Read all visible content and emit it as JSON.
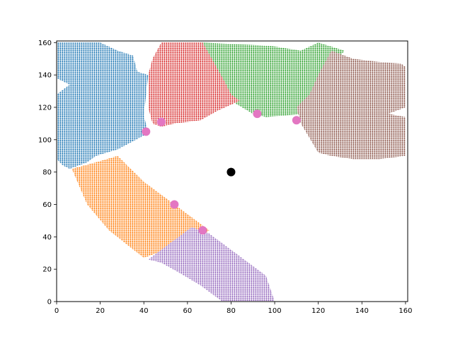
{
  "chart_data": {
    "type": "scatter",
    "title": "",
    "xlabel": "",
    "ylabel": "",
    "xlim": [
      0,
      161
    ],
    "ylim": [
      0,
      161
    ],
    "grid": false,
    "legend": "none",
    "x_ticks": [
      0,
      20,
      40,
      60,
      80,
      100,
      120,
      140,
      160
    ],
    "y_ticks": [
      0,
      20,
      40,
      60,
      80,
      100,
      120,
      140,
      160
    ],
    "series": [
      {
        "color": "#1f77b4",
        "marker": "dense points",
        "region": [
          [
            0,
            160
          ],
          [
            20,
            160
          ],
          [
            28,
            155
          ],
          [
            35,
            152
          ],
          [
            37,
            142
          ],
          [
            42,
            140
          ],
          [
            40,
            115
          ],
          [
            42,
            104
          ],
          [
            28,
            94
          ],
          [
            18,
            90
          ],
          [
            14,
            86
          ],
          [
            6,
            82
          ],
          [
            3,
            84
          ],
          [
            0,
            88
          ],
          [
            0,
            128
          ],
          [
            6,
            134
          ],
          [
            0,
            138
          ]
        ]
      },
      {
        "color": "#ff7f0e",
        "marker": "dense points",
        "region": [
          [
            7,
            82
          ],
          [
            18,
            86
          ],
          [
            28,
            90
          ],
          [
            40,
            74
          ],
          [
            56,
            58
          ],
          [
            70,
            44
          ],
          [
            66,
            40
          ],
          [
            52,
            33
          ],
          [
            40,
            27
          ],
          [
            24,
            44
          ],
          [
            14,
            60
          ]
        ]
      },
      {
        "color": "#2ca02c",
        "marker": "dense points",
        "region": [
          [
            67,
            160
          ],
          [
            98,
            158
          ],
          [
            112,
            155
          ],
          [
            120,
            160
          ],
          [
            132,
            155
          ],
          [
            122,
            138
          ],
          [
            118,
            128
          ],
          [
            114,
            116
          ],
          [
            96,
            114
          ],
          [
            90,
            116
          ],
          [
            80,
            124
          ],
          [
            75,
            132
          ],
          [
            70,
            150
          ]
        ]
      },
      {
        "color": "#d62728",
        "marker": "dense points",
        "region": [
          [
            48,
            160
          ],
          [
            67,
            160
          ],
          [
            72,
            148
          ],
          [
            77,
            136
          ],
          [
            80,
            128
          ],
          [
            84,
            124
          ],
          [
            74,
            118
          ],
          [
            66,
            112
          ],
          [
            54,
            110
          ],
          [
            48,
            108
          ],
          [
            44,
            110
          ],
          [
            42,
            120
          ],
          [
            42,
            140
          ],
          [
            44,
            150
          ]
        ]
      },
      {
        "color": "#9467bd",
        "marker": "dense points",
        "region": [
          [
            62,
            46
          ],
          [
            70,
            42
          ],
          [
            80,
            32
          ],
          [
            90,
            22
          ],
          [
            96,
            16
          ],
          [
            100,
            0
          ],
          [
            76,
            0
          ],
          [
            66,
            10
          ],
          [
            56,
            18
          ],
          [
            48,
            24
          ],
          [
            42,
            26
          ]
        ]
      },
      {
        "color": "#8c564b",
        "marker": "dense points",
        "region": [
          [
            126,
            155
          ],
          [
            136,
            150
          ],
          [
            148,
            148
          ],
          [
            158,
            147
          ],
          [
            160,
            145
          ],
          [
            160,
            120
          ],
          [
            152,
            116
          ],
          [
            160,
            114
          ],
          [
            160,
            90
          ],
          [
            148,
            88
          ],
          [
            136,
            88
          ],
          [
            126,
            90
          ],
          [
            120,
            92
          ],
          [
            112,
            110
          ],
          [
            110,
            120
          ],
          [
            116,
            128
          ],
          [
            120,
            140
          ]
        ]
      },
      {
        "color": "#e377c2",
        "marker": "circle",
        "points": [
          [
            41,
            105
          ],
          [
            48,
            111
          ],
          [
            54,
            60
          ],
          [
            67,
            44
          ],
          [
            92,
            116
          ],
          [
            110,
            112
          ]
        ]
      },
      {
        "color": "#000000",
        "marker": "circle",
        "points": [
          [
            80,
            80
          ]
        ]
      }
    ]
  }
}
